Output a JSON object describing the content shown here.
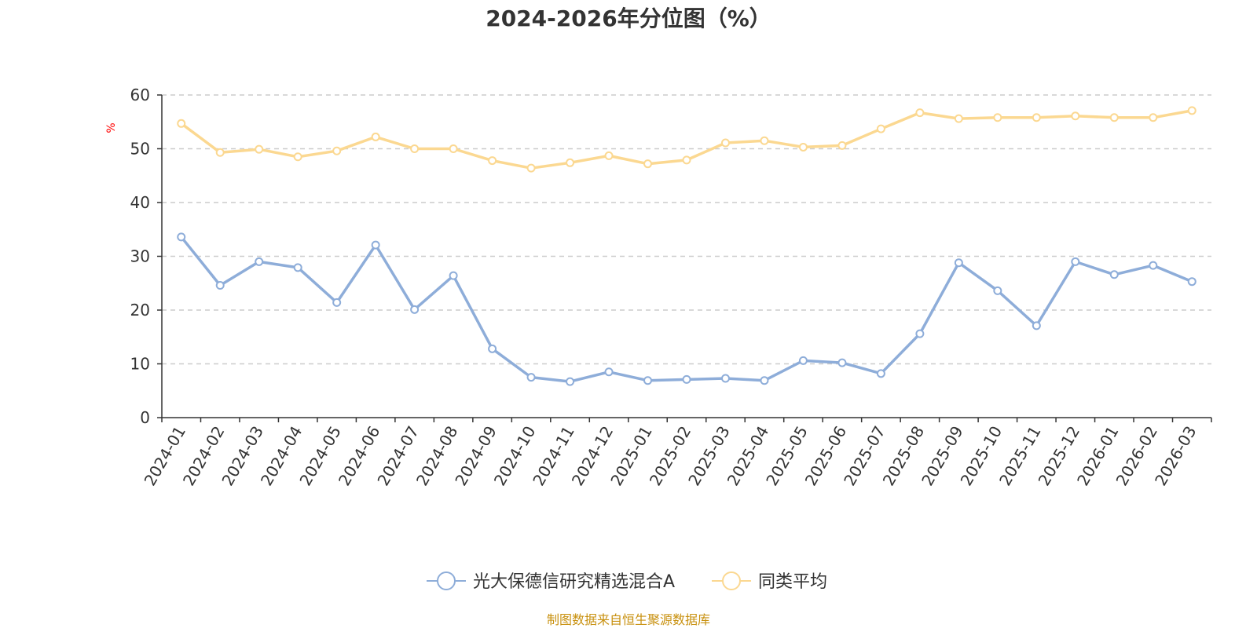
{
  "colors": {
    "series_fund": "#8eadd9",
    "series_avg": "#fbd891",
    "grid": "#cccccc",
    "axis": "#333333",
    "title": "#333333",
    "y_unit": "#ff0000",
    "source": "#c8900e"
  },
  "source_note": "制图数据来自恒生聚源数据库",
  "chart_data": {
    "type": "line",
    "title": "2024-2026年分位图（%）",
    "ylabel": "%",
    "xlabel": "",
    "ylim": [
      0,
      60
    ],
    "y_ticks": [
      0,
      10,
      20,
      30,
      40,
      50,
      60
    ],
    "grid": true,
    "grid_style": "dashed horizontal",
    "legend_position": "bottom",
    "categories": [
      "2024-01",
      "2024-02",
      "2024-03",
      "2024-04",
      "2024-05",
      "2024-06",
      "2024-07",
      "2024-08",
      "2024-09",
      "2024-10",
      "2024-11",
      "2024-12",
      "2025-01",
      "2025-02",
      "2025-03",
      "2025-04",
      "2025-05",
      "2025-06",
      "2025-07",
      "2025-08",
      "2025-09",
      "2025-10",
      "2025-11",
      "2025-12",
      "2026-01",
      "2026-02",
      "2026-03"
    ],
    "series": [
      {
        "name": "光大保德信研究精选混合A",
        "color": "#8eadd9",
        "values": [
          33.6,
          24.6,
          29.0,
          27.9,
          21.4,
          32.1,
          20.1,
          26.4,
          12.8,
          7.5,
          6.7,
          8.5,
          6.9,
          7.1,
          7.3,
          6.9,
          10.6,
          10.2,
          8.2,
          15.6,
          28.8,
          23.6,
          17.1,
          29.0,
          26.6,
          28.3,
          25.3
        ]
      },
      {
        "name": "同类平均",
        "color": "#fbd891",
        "values": [
          54.7,
          49.3,
          49.9,
          48.5,
          49.6,
          52.2,
          50.0,
          50.0,
          47.8,
          46.4,
          47.4,
          48.7,
          47.2,
          47.9,
          51.1,
          51.5,
          50.3,
          50.6,
          53.7,
          56.7,
          55.6,
          55.8,
          55.8,
          56.1,
          55.8,
          55.8,
          57.1
        ]
      }
    ]
  }
}
